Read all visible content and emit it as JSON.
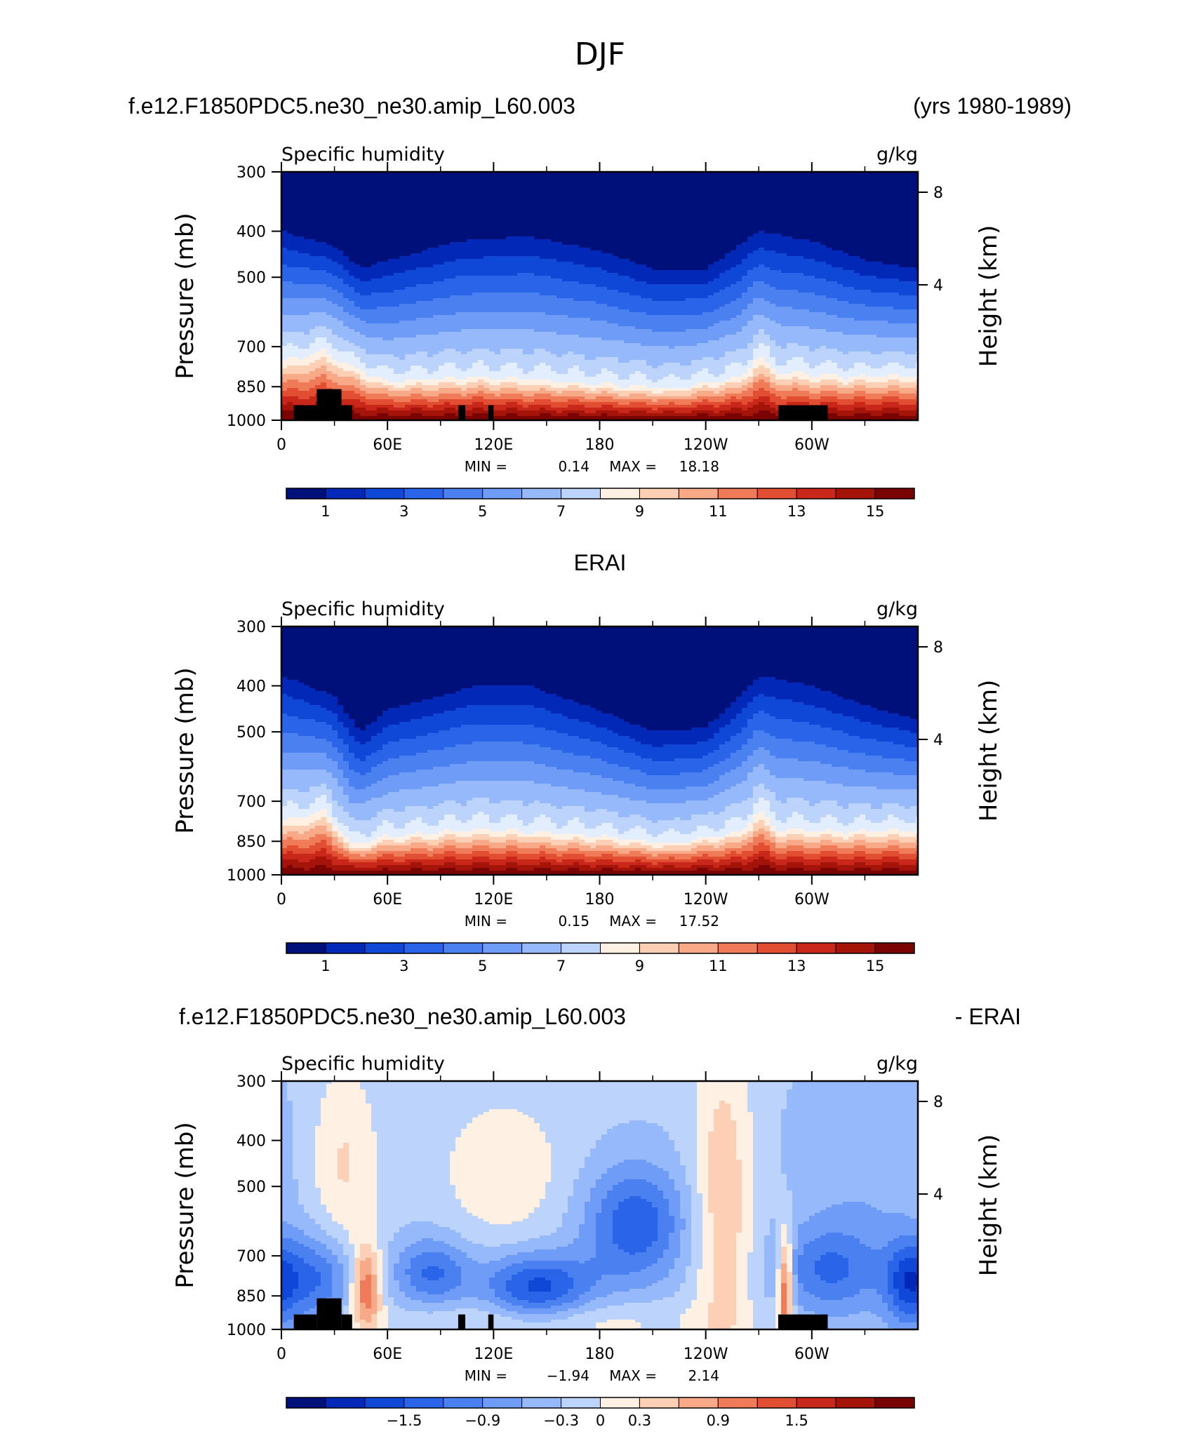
{
  "figure": {
    "title": "DJF",
    "header_left": "f.e12.F1850PDC5.ne30_ne30.amip_L60.003",
    "header_right": "(yrs 1980-1989)"
  },
  "chart_data": [
    {
      "type": "heatmap",
      "panel_label": "",
      "subtitle_left": "Specific humidity",
      "subtitle_right": "g/kg",
      "ylabel": "Pressure (mb)",
      "ylabel_right": "Height (km)",
      "x_ticks": [
        "0",
        "60E",
        "120E",
        "180",
        "120W",
        "60W"
      ],
      "x_tick_values": [
        0,
        60,
        120,
        180,
        240,
        300
      ],
      "xlim": [
        0,
        360
      ],
      "y_ticks": [
        "300",
        "400",
        "500",
        "700",
        "850",
        "1000"
      ],
      "y_tick_values": [
        300,
        400,
        500,
        700,
        850,
        1000
      ],
      "ylim": [
        1000,
        300
      ],
      "y_scale": "log",
      "right_ticks": [
        "8",
        "4"
      ],
      "right_tick_values": [
        8,
        4
      ],
      "min_label": "MIN =",
      "min_value": "0.14",
      "max_label": "MAX =",
      "max_value": "18.18",
      "colorbar": {
        "labels": [
          "1",
          "3",
          "5",
          "7",
          "9",
          "11",
          "13",
          "15"
        ],
        "n_colors": 16
      },
      "field": "climatology",
      "moisture_top_curve": [
        [
          0,
          400
        ],
        [
          30,
          430
        ],
        [
          45,
          480
        ],
        [
          60,
          460
        ],
        [
          100,
          420
        ],
        [
          140,
          410
        ],
        [
          180,
          440
        ],
        [
          210,
          480
        ],
        [
          240,
          480
        ],
        [
          270,
          400
        ],
        [
          300,
          420
        ],
        [
          330,
          460
        ],
        [
          360,
          480
        ]
      ],
      "moisture_surface_curve": [
        [
          0,
          740
        ],
        [
          25,
          700
        ],
        [
          40,
          760
        ],
        [
          60,
          820
        ],
        [
          110,
          800
        ],
        [
          140,
          810
        ],
        [
          180,
          830
        ],
        [
          220,
          850
        ],
        [
          260,
          800
        ],
        [
          270,
          720
        ],
        [
          280,
          780
        ],
        [
          320,
          800
        ],
        [
          360,
          790
        ]
      ],
      "topography_blocks": [
        [
          7,
          20,
          930,
          1000
        ],
        [
          20,
          34,
          860,
          1000
        ],
        [
          34,
          40,
          930,
          1000
        ],
        [
          100,
          104,
          930,
          1000
        ],
        [
          117,
          120,
          930,
          1000
        ],
        [
          281,
          309,
          930,
          1000
        ]
      ]
    },
    {
      "type": "heatmap",
      "panel_label": "ERAI",
      "subtitle_left": "Specific humidity",
      "subtitle_right": "g/kg",
      "ylabel": "Pressure (mb)",
      "ylabel_right": "Height (km)",
      "x_ticks": [
        "0",
        "60E",
        "120E",
        "180",
        "120W",
        "60W"
      ],
      "x_tick_values": [
        0,
        60,
        120,
        180,
        240,
        300
      ],
      "xlim": [
        0,
        360
      ],
      "y_ticks": [
        "300",
        "400",
        "500",
        "700",
        "850",
        "1000"
      ],
      "y_tick_values": [
        300,
        400,
        500,
        700,
        850,
        1000
      ],
      "ylim": [
        1000,
        300
      ],
      "y_scale": "log",
      "right_ticks": [
        "8",
        "4"
      ],
      "right_tick_values": [
        8,
        4
      ],
      "min_label": "MIN =",
      "min_value": "0.15",
      "max_label": "MAX =",
      "max_value": "17.52",
      "colorbar": {
        "labels": [
          "1",
          "3",
          "5",
          "7",
          "9",
          "11",
          "13",
          "15"
        ],
        "n_colors": 16
      },
      "field": "climatology",
      "moisture_top_curve": [
        [
          0,
          380
        ],
        [
          30,
          420
        ],
        [
          45,
          500
        ],
        [
          60,
          450
        ],
        [
          110,
          400
        ],
        [
          140,
          400
        ],
        [
          180,
          450
        ],
        [
          210,
          500
        ],
        [
          240,
          490
        ],
        [
          270,
          380
        ],
        [
          300,
          400
        ],
        [
          330,
          440
        ],
        [
          360,
          470
        ]
      ],
      "moisture_surface_curve": [
        [
          0,
          760
        ],
        [
          25,
          720
        ],
        [
          40,
          860
        ],
        [
          60,
          820
        ],
        [
          110,
          790
        ],
        [
          140,
          800
        ],
        [
          180,
          820
        ],
        [
          220,
          850
        ],
        [
          260,
          800
        ],
        [
          270,
          720
        ],
        [
          280,
          790
        ],
        [
          320,
          800
        ],
        [
          360,
          790
        ]
      ],
      "topography_blocks": []
    },
    {
      "type": "heatmap",
      "panel_label": "f.e12.F1850PDC5.ne30_ne30.amip_L60.003",
      "panel_label_right": "- ERAI",
      "subtitle_left": "Specific humidity",
      "subtitle_right": "g/kg",
      "ylabel": "Pressure (mb)",
      "ylabel_right": "Height (km)",
      "x_ticks": [
        "0",
        "60E",
        "120E",
        "180",
        "120W",
        "60W"
      ],
      "x_tick_values": [
        0,
        60,
        120,
        180,
        240,
        300
      ],
      "xlim": [
        0,
        360
      ],
      "y_ticks": [
        "300",
        "400",
        "500",
        "700",
        "850",
        "1000"
      ],
      "y_tick_values": [
        300,
        400,
        500,
        700,
        850,
        1000
      ],
      "ylim": [
        1000,
        300
      ],
      "y_scale": "log",
      "right_ticks": [
        "8",
        "4"
      ],
      "right_tick_values": [
        8,
        4
      ],
      "min_label": "MIN =",
      "min_value": "−1.94",
      "max_label": "MAX =",
      "max_value": "2.14",
      "colorbar": {
        "labels": [
          "−1.5",
          "−0.9",
          "−0.3",
          "0",
          "0.3",
          "0.9",
          "1.5"
        ],
        "n_colors": 16
      },
      "field": "difference",
      "anomalies": [
        {
          "lon": 35,
          "p": 450,
          "amp": 0.6,
          "slon": 14,
          "sp": 0.35
        },
        {
          "lon": 48,
          "p": 820,
          "amp": 1.4,
          "slon": 6,
          "sp": 0.15
        },
        {
          "lon": 125,
          "p": 460,
          "amp": 0.5,
          "slon": 25,
          "sp": 0.25
        },
        {
          "lon": 250,
          "p": 550,
          "amp": 0.8,
          "slon": 12,
          "sp": 0.6
        },
        {
          "lon": 285,
          "p": 820,
          "amp": 1.6,
          "slon": 3,
          "sp": 0.2
        },
        {
          "lon": 150,
          "p": 960,
          "amp": 0.5,
          "slon": 60,
          "sp": 0.08
        },
        {
          "lon": 20,
          "p": 780,
          "amp": -1.0,
          "slon": 15,
          "sp": 0.15
        },
        {
          "lon": 85,
          "p": 760,
          "amp": -1.0,
          "slon": 15,
          "sp": 0.12
        },
        {
          "lon": 145,
          "p": 820,
          "amp": -1.4,
          "slon": 22,
          "sp": 0.12
        },
        {
          "lon": 200,
          "p": 600,
          "amp": -1.2,
          "slon": 20,
          "sp": 0.2
        },
        {
          "lon": 310,
          "p": 750,
          "amp": -0.9,
          "slon": 20,
          "sp": 0.15
        },
        {
          "lon": 355,
          "p": 800,
          "amp": -1.2,
          "slon": 10,
          "sp": 0.15
        },
        {
          "lon": 330,
          "p": 500,
          "amp": -0.3,
          "slon": 30,
          "sp": 0.4
        }
      ],
      "topography_blocks": [
        [
          7,
          20,
          930,
          1000
        ],
        [
          20,
          34,
          860,
          1000
        ],
        [
          34,
          40,
          930,
          1000
        ],
        [
          100,
          104,
          930,
          1000
        ],
        [
          117,
          120,
          930,
          1000
        ],
        [
          281,
          309,
          930,
          1000
        ]
      ]
    }
  ],
  "colors": {
    "palette": [
      "#00107a",
      "#0228b8",
      "#0f48d6",
      "#2a64e8",
      "#4a80f0",
      "#6f9cf6",
      "#95b9fa",
      "#bcd3fc",
      "#e2edfe",
      "#fff0e4",
      "#fdd0b6",
      "#f8a988",
      "#f07b58",
      "#e24e31",
      "#c8271a",
      "#a41408",
      "#7a0404"
    ]
  }
}
